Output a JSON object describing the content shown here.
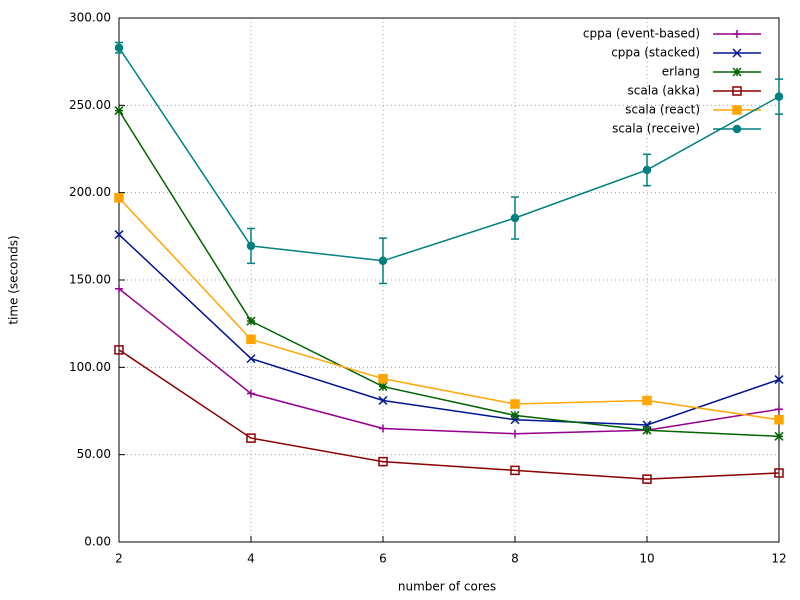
{
  "chart_data": {
    "type": "line",
    "xlabel": "number of cores",
    "ylabel": "time (seconds)",
    "x": [
      2,
      4,
      6,
      8,
      10,
      12
    ],
    "xlim": [
      2,
      12
    ],
    "xticks": [
      2,
      4,
      6,
      8,
      10,
      12
    ],
    "ylim": [
      0,
      300
    ],
    "yticks": [
      {
        "value": 0,
        "label": "0.00"
      },
      {
        "value": 50,
        "label": "50.00"
      },
      {
        "value": 100,
        "label": "100.00"
      },
      {
        "value": 150,
        "label": "150.00"
      },
      {
        "value": 200,
        "label": "200.00"
      },
      {
        "value": 250,
        "label": "250.00"
      },
      {
        "value": 300,
        "label": "300.00"
      }
    ],
    "grid": true,
    "legend": "top-right",
    "series": [
      {
        "name": "cppa (event-based)",
        "color": "#94008f",
        "marker": "plus",
        "values": [
          145,
          85,
          65,
          62,
          64,
          76
        ]
      },
      {
        "name": "cppa (stacked)",
        "color": "#00158f",
        "marker": "cross",
        "values": [
          176,
          105,
          81,
          70,
          67,
          93
        ]
      },
      {
        "name": "erlang",
        "color": "#006400",
        "marker": "star",
        "values": [
          247,
          126.5,
          89,
          72.5,
          64,
          60.5
        ]
      },
      {
        "name": "scala (akka)",
        "color": "#8b0000",
        "marker": "square-open",
        "values": [
          110,
          59.5,
          46,
          41,
          36,
          39.5
        ]
      },
      {
        "name": "scala (react)",
        "color": "#ffa500",
        "marker": "square",
        "values": [
          197,
          116,
          93.5,
          79,
          81,
          70
        ]
      },
      {
        "name": "scala (receive)",
        "color": "#008080",
        "marker": "circle",
        "values": [
          283,
          169.5,
          161,
          185.5,
          213,
          255
        ],
        "errors": [
          3,
          10,
          13,
          12,
          9,
          10
        ]
      }
    ]
  }
}
